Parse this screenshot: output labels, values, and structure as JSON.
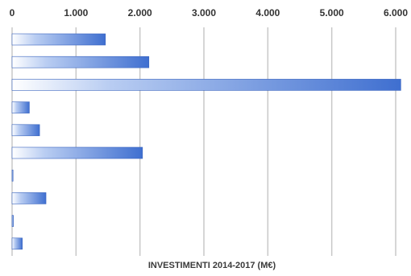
{
  "chart_data": {
    "type": "bar",
    "orientation": "horizontal",
    "title": "",
    "xlabel": "INVESTIMENTI 2014-2017 (M€)",
    "ylabel": "",
    "xlim": [
      0,
      6000
    ],
    "x_ticks": [
      0,
      1000,
      2000,
      3000,
      4000,
      5000,
      6000
    ],
    "x_tick_labels": [
      "0",
      "1.000",
      "2.000",
      "3.000",
      "4.000",
      "5.000",
      "6.000"
    ],
    "tick_position": "top",
    "grid": "vertical",
    "values": [
      1460,
      2140,
      6080,
      270,
      430,
      2040,
      15,
      530,
      20,
      160
    ],
    "colors": {
      "bar_start": "#ffffff",
      "bar_end": "#3f6fd0",
      "bar_edge": "#3a64be",
      "grid": "#c8c8c8"
    }
  }
}
